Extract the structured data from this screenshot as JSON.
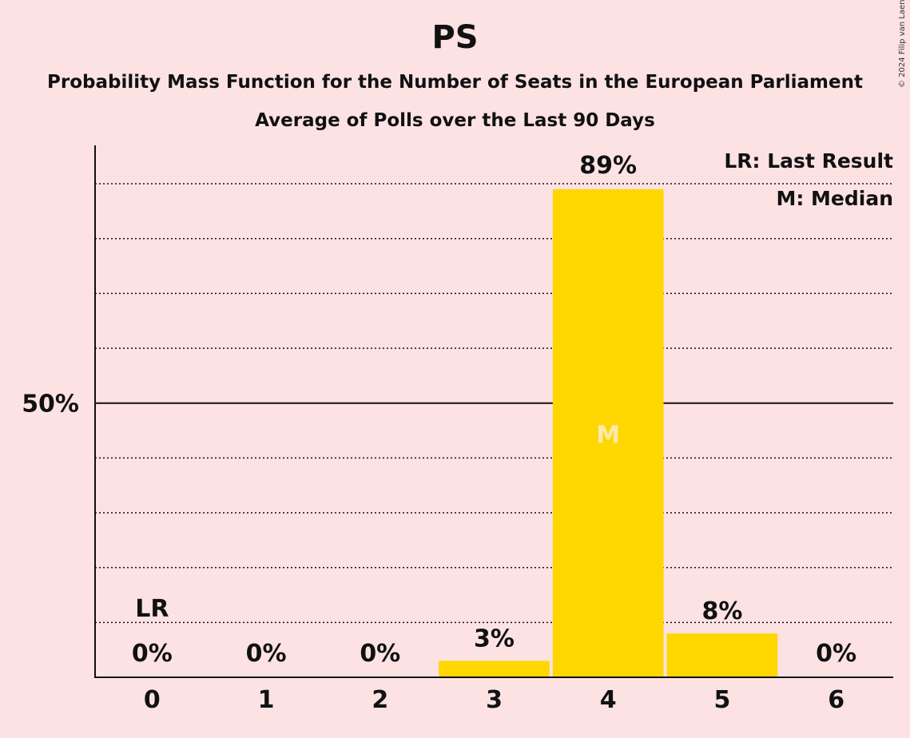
{
  "title": "PS",
  "subtitle": "Probability Mass Function for the Number of Seats in the European Parliament",
  "subtitle2": "Average of Polls over the Last 90 Days",
  "copyright": "© 2024 Filip van Laenen",
  "legend": {
    "last_result": "LR: Last Result",
    "median": "M: Median"
  },
  "colors": {
    "bar": "#FFD700",
    "background": "#fde2e4",
    "median_label": "#fdeab0"
  },
  "chart_data": {
    "type": "bar",
    "categories": [
      "0",
      "1",
      "2",
      "3",
      "4",
      "5",
      "6"
    ],
    "values": [
      0,
      0,
      0,
      3,
      89,
      8,
      0
    ],
    "value_labels": [
      "0%",
      "0%",
      "0%",
      "3%",
      "89%",
      "8%",
      "0%"
    ],
    "ylim": [
      0,
      97
    ],
    "y_tick_major": {
      "value": 50,
      "label": "50%"
    },
    "gridlines_dotted_every": 10,
    "last_result": {
      "category": "0",
      "label": "LR"
    },
    "median": {
      "category": "4",
      "label": "M"
    },
    "legend_position": "top-right"
  }
}
